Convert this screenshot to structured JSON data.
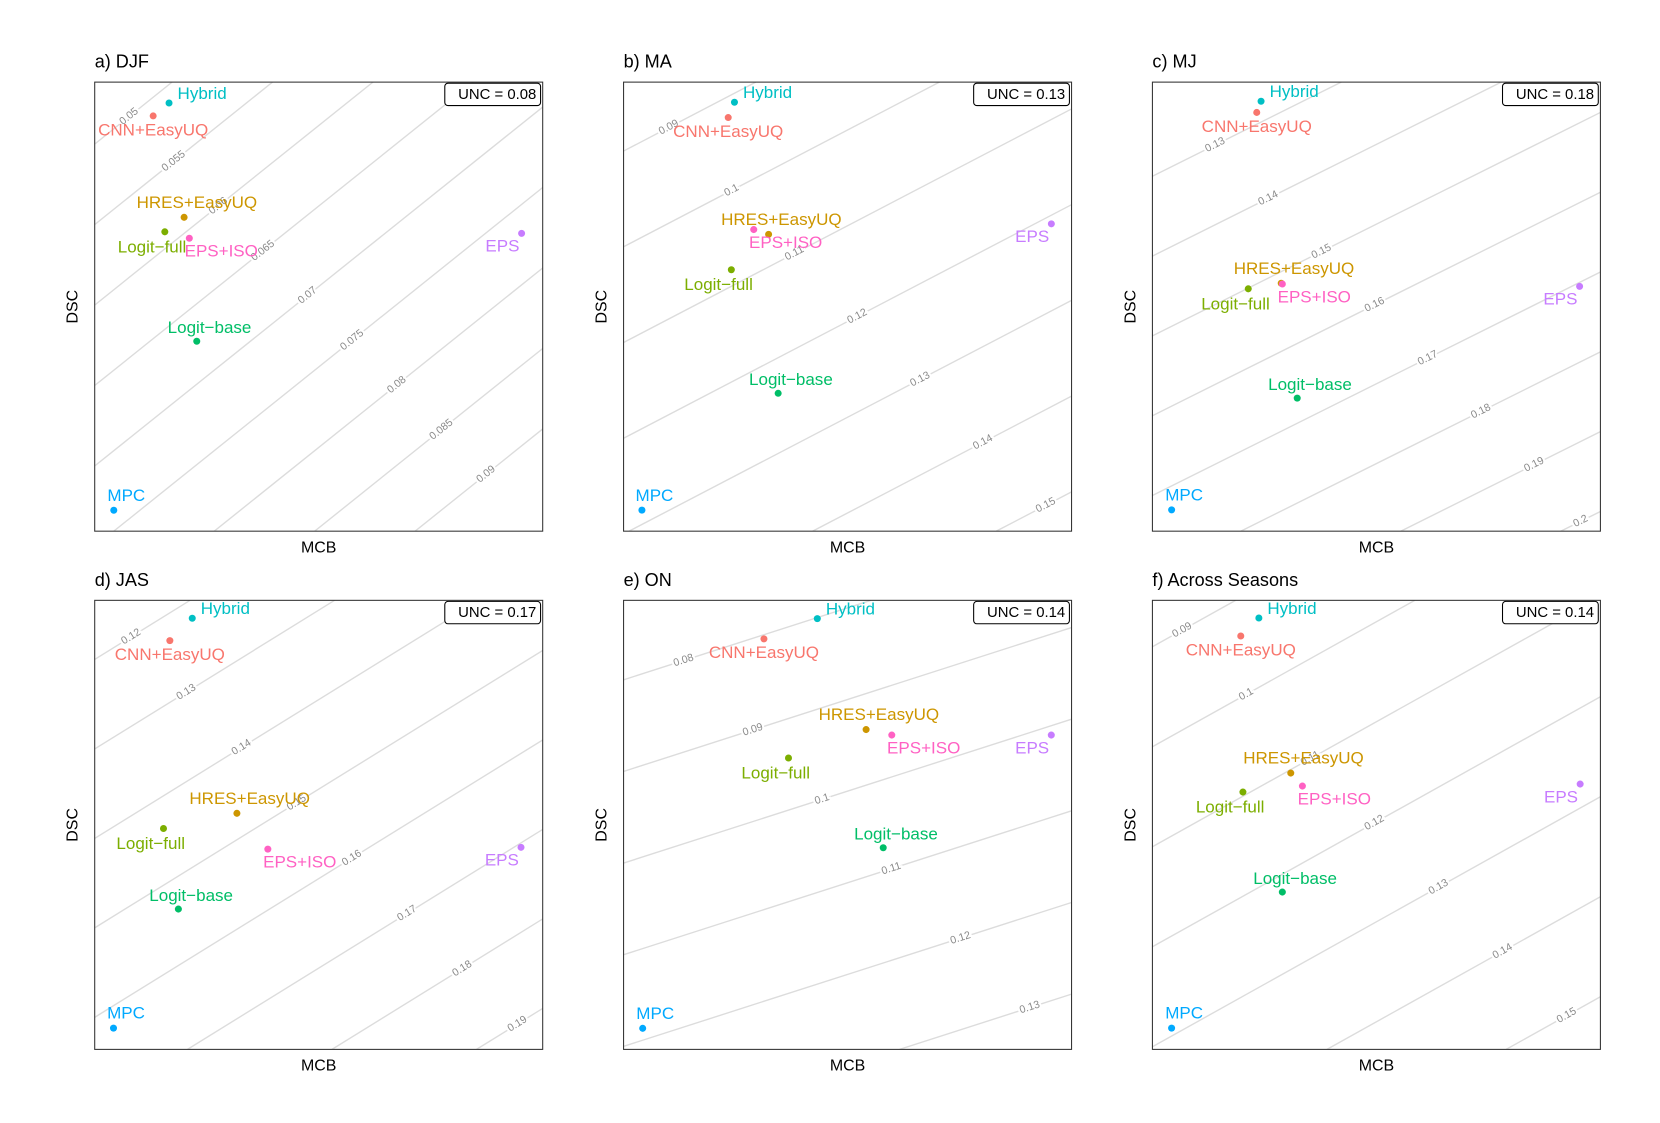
{
  "chart_data": [
    {
      "type": "scatter",
      "title": "a) DJF",
      "x_label": "MCB",
      "y_label": "DSC",
      "unc": {
        "value": 0.08,
        "label": "UNC = 0.08"
      },
      "xlim": [
        5e-05,
        0.02235
      ],
      "ylim": [
        0.006,
        0.0339
      ],
      "contours": [
        0.05,
        0.055,
        0.06,
        0.065,
        0.07,
        0.075,
        0.08,
        0.085,
        0.09
      ],
      "series": [
        {
          "name": "Hybrid",
          "color": "#00BFC4",
          "x": [
            0.00375
          ],
          "values": [
            0.0326
          ]
        },
        {
          "name": "CNN+EasyUQ",
          "color": "#F8766D",
          "x": [
            0.00296
          ],
          "values": [
            0.0318
          ]
        },
        {
          "name": "HRES+EasyUQ",
          "color": "#CD9600",
          "x": [
            0.0045
          ],
          "values": [
            0.0255
          ]
        },
        {
          "name": "Logit−full",
          "color": "#7CAE00",
          "x": [
            0.00354
          ],
          "values": [
            0.0246
          ]
        },
        {
          "name": "EPS+ISO",
          "color": "#FF61C3",
          "x": [
            0.00476
          ],
          "values": [
            0.0242
          ]
        },
        {
          "name": "EPS",
          "color": "#C77CFF",
          "x": [
            0.0213
          ],
          "values": [
            0.0245
          ]
        },
        {
          "name": "Logit−base",
          "color": "#00BE67",
          "x": [
            0.00513
          ],
          "values": [
            0.0178
          ]
        },
        {
          "name": "MPC",
          "color": "#00A9FF",
          "x": [
            0.001
          ],
          "values": [
            0.0073
          ]
        }
      ]
    },
    {
      "type": "scatter",
      "title": "b) MA",
      "x_label": "MCB",
      "y_label": "DSC",
      "unc": {
        "value": 0.13,
        "label": "UNC = 0.13"
      },
      "xlim": [
        0,
        0.0244
      ],
      "ylim": [
        0.0003,
        0.0472
      ],
      "contours": [
        0.09,
        0.1,
        0.11,
        0.12,
        0.13,
        0.14,
        0.15
      ],
      "series": [
        {
          "name": "Hybrid",
          "color": "#00BFC4",
          "x": [
            0.00604
          ],
          "values": [
            0.0451
          ]
        },
        {
          "name": "CNN+EasyUQ",
          "color": "#F8766D",
          "x": [
            0.0057
          ],
          "values": [
            0.0435
          ]
        },
        {
          "name": "HRES+EasyUQ",
          "color": "#CD9600",
          "x": [
            0.0079
          ],
          "values": [
            0.0313
          ]
        },
        {
          "name": "Logit−full",
          "color": "#7CAE00",
          "x": [
            0.00587
          ],
          "values": [
            0.0276
          ]
        },
        {
          "name": "EPS+ISO",
          "color": "#FF61C3",
          "x": [
            0.00709
          ],
          "values": [
            0.0318
          ]
        },
        {
          "name": "EPS",
          "color": "#C77CFF",
          "x": [
            0.0233
          ],
          "values": [
            0.0324
          ]
        },
        {
          "name": "Logit−base",
          "color": "#00BE67",
          "x": [
            0.00842
          ],
          "values": [
            0.0147
          ]
        },
        {
          "name": "MPC",
          "color": "#00A9FF",
          "x": [
            0.001
          ],
          "values": [
            0.0025
          ]
        }
      ]
    },
    {
      "type": "scatter",
      "title": "c) MJ",
      "x_label": "MCB",
      "y_label": "DSC",
      "unc": {
        "value": 0.18,
        "label": "UNC = 0.18"
      },
      "xlim": [
        -0.0002,
        0.0278
      ],
      "ylim": [
        0.00533,
        0.0616
      ],
      "contours": [
        0.13,
        0.14,
        0.15,
        0.16,
        0.17,
        0.18,
        0.19,
        0.2
      ],
      "series": [
        {
          "name": "Hybrid",
          "color": "#00BFC4",
          "x": [
            0.00659
          ],
          "values": [
            0.0592
          ]
        },
        {
          "name": "CNN+EasyUQ",
          "color": "#F8766D",
          "x": [
            0.00632
          ],
          "values": [
            0.0578
          ]
        },
        {
          "name": "HRES+EasyUQ",
          "color": "#CD9600",
          "x": [
            0.00785
          ],
          "values": [
            0.0364
          ]
        },
        {
          "name": "Logit−full",
          "color": "#7CAE00",
          "x": [
            0.00579
          ],
          "values": [
            0.0357
          ]
        },
        {
          "name": "EPS+ISO",
          "color": "#FF61C3",
          "x": [
            0.00792
          ],
          "values": [
            0.0363
          ]
        },
        {
          "name": "EPS",
          "color": "#C77CFF",
          "x": [
            0.0265
          ],
          "values": [
            0.036
          ]
        },
        {
          "name": "Logit−base",
          "color": "#00BE67",
          "x": [
            0.00885
          ],
          "values": [
            0.022
          ]
        },
        {
          "name": "MPC",
          "color": "#00A9FF",
          "x": [
            0.001
          ],
          "values": [
            0.008
          ]
        }
      ]
    },
    {
      "type": "scatter",
      "title": "d) JAS",
      "x_label": "MCB",
      "y_label": "DSC",
      "unc": {
        "value": 0.17,
        "label": "UNC = 0.17"
      },
      "xlim": [
        -0.0003,
        0.0307
      ],
      "ylim": [
        0.00612,
        0.0563
      ],
      "contours": [
        0.12,
        0.13,
        0.14,
        0.15,
        0.16,
        0.17,
        0.18,
        0.19
      ],
      "series": [
        {
          "name": "Hybrid",
          "color": "#00BFC4",
          "x": [
            0.00645
          ],
          "values": [
            0.0543
          ]
        },
        {
          "name": "CNN+EasyUQ",
          "color": "#F8766D",
          "x": [
            0.0049
          ],
          "values": [
            0.0518
          ]
        },
        {
          "name": "HRES+EasyUQ",
          "color": "#CD9600",
          "x": [
            0.00954
          ],
          "values": [
            0.0325
          ]
        },
        {
          "name": "Logit−full",
          "color": "#7CAE00",
          "x": [
            0.00446
          ],
          "values": [
            0.0308
          ]
        },
        {
          "name": "EPS+ISO",
          "color": "#FF61C3",
          "x": [
            0.01168
          ],
          "values": [
            0.0285
          ]
        },
        {
          "name": "EPS",
          "color": "#C77CFF",
          "x": [
            0.0292
          ],
          "values": [
            0.0287
          ]
        },
        {
          "name": "Logit−base",
          "color": "#00BE67",
          "x": [
            0.00549
          ],
          "values": [
            0.0218
          ]
        },
        {
          "name": "MPC",
          "color": "#00A9FF",
          "x": [
            0.001
          ],
          "values": [
            0.0085
          ]
        }
      ]
    },
    {
      "type": "scatter",
      "title": "e) ON",
      "x_label": "MCB",
      "y_label": "DSC",
      "unc": {
        "value": 0.14,
        "label": "UNC = 0.14"
      },
      "xlim": [
        0.00033,
        0.01603
      ],
      "ylim": [
        0.02,
        0.069
      ],
      "contours": [
        0.08,
        0.09,
        0.1,
        0.11,
        0.12,
        0.13
      ],
      "series": [
        {
          "name": "Hybrid",
          "color": "#00BFC4",
          "x": [
            0.00712
          ],
          "values": [
            0.067
          ]
        },
        {
          "name": "CNN+EasyUQ",
          "color": "#F8766D",
          "x": [
            0.00525
          ],
          "values": [
            0.0648
          ]
        },
        {
          "name": "HRES+EasyUQ",
          "color": "#CD9600",
          "x": [
            0.00883
          ],
          "values": [
            0.0549
          ]
        },
        {
          "name": "Logit−full",
          "color": "#7CAE00",
          "x": [
            0.00611
          ],
          "values": [
            0.0518
          ]
        },
        {
          "name": "EPS+ISO",
          "color": "#FF61C3",
          "x": [
            0.00973
          ],
          "values": [
            0.0543
          ]
        },
        {
          "name": "EPS",
          "color": "#C77CFF",
          "x": [
            0.01532
          ],
          "values": [
            0.0543
          ]
        },
        {
          "name": "Logit−base",
          "color": "#00BE67",
          "x": [
            0.00943
          ],
          "values": [
            0.042
          ]
        },
        {
          "name": "MPC",
          "color": "#00A9FF",
          "x": [
            0.001
          ],
          "values": [
            0.0223
          ]
        }
      ]
    },
    {
      "type": "scatter",
      "title": "f) Across Seasons",
      "x_label": "MCB",
      "y_label": "DSC",
      "unc": {
        "value": 0.14,
        "label": "UNC = 0.14"
      },
      "xlim": [
        -7e-05,
        0.02493
      ],
      "ylim": [
        0.00967,
        0.05457
      ],
      "contours": [
        0.09,
        0.1,
        0.11,
        0.12,
        0.13,
        0.14,
        0.15
      ],
      "series": [
        {
          "name": "Hybrid",
          "color": "#00BFC4",
          "x": [
            0.00587
          ],
          "values": [
            0.0528
          ]
        },
        {
          "name": "CNN+EasyUQ",
          "color": "#F8766D",
          "x": [
            0.00486
          ],
          "values": [
            0.051
          ]
        },
        {
          "name": "HRES+EasyUQ",
          "color": "#CD9600",
          "x": [
            0.00765
          ],
          "values": [
            0.0373
          ]
        },
        {
          "name": "Logit−full",
          "color": "#7CAE00",
          "x": [
            0.00498
          ],
          "values": [
            0.0354
          ]
        },
        {
          "name": "EPS+ISO",
          "color": "#FF61C3",
          "x": [
            0.0083
          ],
          "values": [
            0.036
          ]
        },
        {
          "name": "EPS",
          "color": "#C77CFF",
          "x": [
            0.0238
          ],
          "values": [
            0.0362
          ]
        },
        {
          "name": "Logit−base",
          "color": "#00BE67",
          "x": [
            0.00718
          ],
          "values": [
            0.0254
          ]
        },
        {
          "name": "MPC",
          "color": "#00A9FF",
          "x": [
            0.001
          ],
          "values": [
            0.0118
          ]
        }
      ]
    }
  ]
}
